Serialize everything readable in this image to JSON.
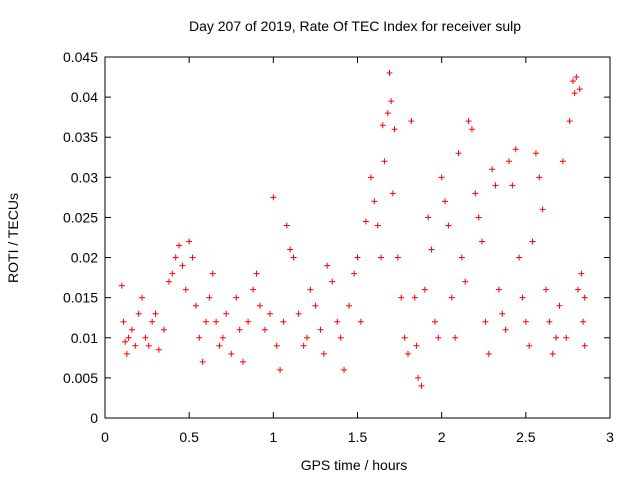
{
  "chart_data": {
    "type": "scatter",
    "title": "Day 207 of 2019, Rate Of TEC Index for receiver sulp",
    "xlabel": "GPS time / hours",
    "ylabel": "ROTI / TECUs",
    "xlim": [
      0,
      3
    ],
    "ylim": [
      0,
      0.045
    ],
    "x_ticks": [
      "0",
      "0.5",
      "1",
      "1.5",
      "2",
      "2.5",
      "3"
    ],
    "y_ticks": [
      "0",
      "0.005",
      "0.01",
      "0.015",
      "0.02",
      "0.025",
      "0.03",
      "0.035",
      "0.04",
      "0.045"
    ],
    "grid": false,
    "marker": "plus",
    "color": "#ff0000",
    "series": [
      {
        "name": "",
        "points": [
          [
            0.1,
            0.0165
          ],
          [
            0.11,
            0.012
          ],
          [
            0.12,
            0.0095
          ],
          [
            0.13,
            0.008
          ],
          [
            0.14,
            0.01
          ],
          [
            0.16,
            0.011
          ],
          [
            0.18,
            0.009
          ],
          [
            0.2,
            0.013
          ],
          [
            0.22,
            0.015
          ],
          [
            0.24,
            0.01
          ],
          [
            0.26,
            0.009
          ],
          [
            0.28,
            0.012
          ],
          [
            0.3,
            0.013
          ],
          [
            0.32,
            0.0085
          ],
          [
            0.35,
            0.011
          ],
          [
            0.38,
            0.017
          ],
          [
            0.4,
            0.018
          ],
          [
            0.42,
            0.02
          ],
          [
            0.44,
            0.0215
          ],
          [
            0.46,
            0.019
          ],
          [
            0.48,
            0.016
          ],
          [
            0.5,
            0.022
          ],
          [
            0.52,
            0.02
          ],
          [
            0.54,
            0.014
          ],
          [
            0.56,
            0.01
          ],
          [
            0.58,
            0.007
          ],
          [
            0.6,
            0.012
          ],
          [
            0.62,
            0.015
          ],
          [
            0.64,
            0.018
          ],
          [
            0.66,
            0.012
          ],
          [
            0.68,
            0.009
          ],
          [
            0.7,
            0.01
          ],
          [
            0.72,
            0.013
          ],
          [
            0.75,
            0.008
          ],
          [
            0.78,
            0.015
          ],
          [
            0.8,
            0.011
          ],
          [
            0.82,
            0.007
          ],
          [
            0.85,
            0.012
          ],
          [
            0.88,
            0.016
          ],
          [
            0.9,
            0.018
          ],
          [
            0.92,
            0.014
          ],
          [
            0.95,
            0.011
          ],
          [
            0.98,
            0.013
          ],
          [
            1.0,
            0.0275
          ],
          [
            1.02,
            0.009
          ],
          [
            1.04,
            0.006
          ],
          [
            1.06,
            0.012
          ],
          [
            1.08,
            0.024
          ],
          [
            1.1,
            0.021
          ],
          [
            1.12,
            0.02
          ],
          [
            1.15,
            0.013
          ],
          [
            1.18,
            0.009
          ],
          [
            1.2,
            0.01
          ],
          [
            1.22,
            0.016
          ],
          [
            1.25,
            0.014
          ],
          [
            1.28,
            0.011
          ],
          [
            1.3,
            0.008
          ],
          [
            1.32,
            0.019
          ],
          [
            1.35,
            0.017
          ],
          [
            1.38,
            0.012
          ],
          [
            1.4,
            0.01
          ],
          [
            1.42,
            0.006
          ],
          [
            1.45,
            0.014
          ],
          [
            1.48,
            0.018
          ],
          [
            1.5,
            0.02
          ],
          [
            1.52,
            0.012
          ],
          [
            1.55,
            0.0245
          ],
          [
            1.58,
            0.03
          ],
          [
            1.6,
            0.027
          ],
          [
            1.62,
            0.024
          ],
          [
            1.64,
            0.02
          ],
          [
            1.65,
            0.0365
          ],
          [
            1.66,
            0.032
          ],
          [
            1.68,
            0.038
          ],
          [
            1.69,
            0.043
          ],
          [
            1.7,
            0.0395
          ],
          [
            1.71,
            0.028
          ],
          [
            1.72,
            0.036
          ],
          [
            1.74,
            0.02
          ],
          [
            1.76,
            0.015
          ],
          [
            1.78,
            0.01
          ],
          [
            1.8,
            0.008
          ],
          [
            1.82,
            0.037
          ],
          [
            1.84,
            0.015
          ],
          [
            1.85,
            0.009
          ],
          [
            1.86,
            0.005
          ],
          [
            1.88,
            0.004
          ],
          [
            1.9,
            0.016
          ],
          [
            1.92,
            0.025
          ],
          [
            1.94,
            0.021
          ],
          [
            1.96,
            0.012
          ],
          [
            1.98,
            0.01
          ],
          [
            2.0,
            0.03
          ],
          [
            2.02,
            0.027
          ],
          [
            2.04,
            0.024
          ],
          [
            2.06,
            0.015
          ],
          [
            2.08,
            0.01
          ],
          [
            2.1,
            0.033
          ],
          [
            2.12,
            0.02
          ],
          [
            2.14,
            0.017
          ],
          [
            2.16,
            0.037
          ],
          [
            2.18,
            0.036
          ],
          [
            2.2,
            0.028
          ],
          [
            2.22,
            0.025
          ],
          [
            2.24,
            0.022
          ],
          [
            2.26,
            0.012
          ],
          [
            2.28,
            0.008
          ],
          [
            2.3,
            0.031
          ],
          [
            2.32,
            0.029
          ],
          [
            2.34,
            0.016
          ],
          [
            2.36,
            0.013
          ],
          [
            2.38,
            0.011
          ],
          [
            2.4,
            0.032
          ],
          [
            2.42,
            0.029
          ],
          [
            2.44,
            0.0335
          ],
          [
            2.46,
            0.02
          ],
          [
            2.48,
            0.015
          ],
          [
            2.5,
            0.012
          ],
          [
            2.52,
            0.009
          ],
          [
            2.54,
            0.022
          ],
          [
            2.56,
            0.033
          ],
          [
            2.58,
            0.03
          ],
          [
            2.6,
            0.026
          ],
          [
            2.62,
            0.016
          ],
          [
            2.64,
            0.012
          ],
          [
            2.66,
            0.008
          ],
          [
            2.68,
            0.01
          ],
          [
            2.7,
            0.014
          ],
          [
            2.72,
            0.032
          ],
          [
            2.74,
            0.01
          ],
          [
            2.76,
            0.037
          ],
          [
            2.78,
            0.042
          ],
          [
            2.79,
            0.0405
          ],
          [
            2.8,
            0.0425
          ],
          [
            2.81,
            0.016
          ],
          [
            2.82,
            0.041
          ],
          [
            2.83,
            0.018
          ],
          [
            2.84,
            0.012
          ],
          [
            2.85,
            0.009
          ],
          [
            2.85,
            0.015
          ]
        ]
      }
    ]
  }
}
